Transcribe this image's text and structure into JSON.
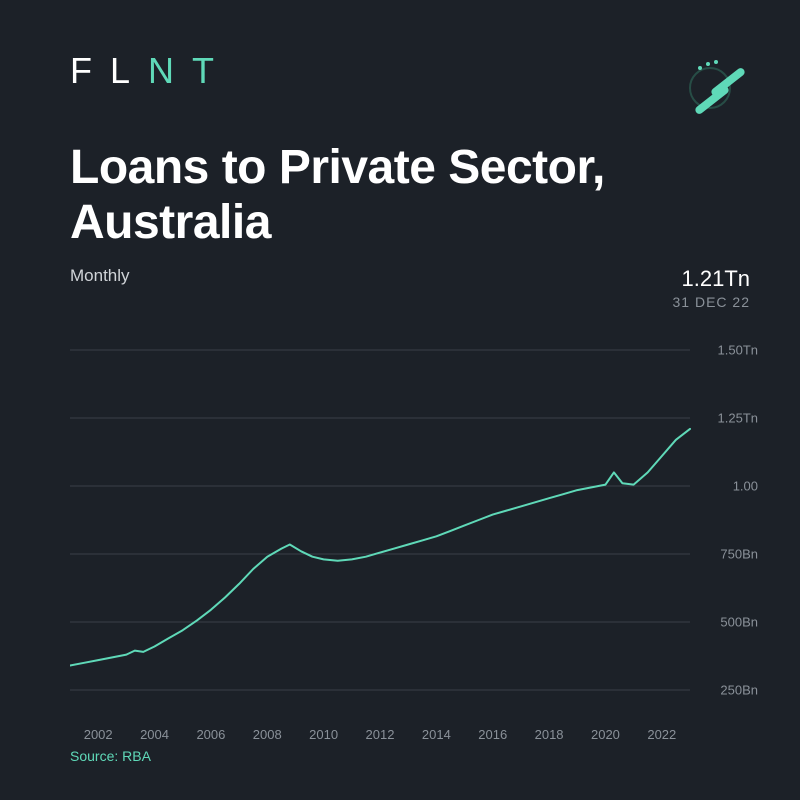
{
  "brand": {
    "letters": [
      "F",
      "L",
      "N",
      "T"
    ],
    "accent_start_index": 2,
    "text_color": "#ffffff",
    "accent_color": "#5fd9b8"
  },
  "title": "Loans to Private Sector, Australia",
  "subtitle": "Monthly",
  "latest": {
    "value": "1.21Tn",
    "date": "31 DEC  22"
  },
  "source": "Source: RBA",
  "chart": {
    "type": "line",
    "background_color": "#1c2128",
    "line_color": "#5fd9b8",
    "line_width": 2,
    "grid_color": "#3a4049",
    "axis_label_color": "#8a9199",
    "label_fontsize": 13,
    "x": {
      "min": 2001,
      "max": 2023,
      "ticks": [
        2002,
        2004,
        2006,
        2008,
        2010,
        2012,
        2014,
        2016,
        2018,
        2020,
        2022
      ]
    },
    "y": {
      "min": 250,
      "max": 1500,
      "unit": "Bn",
      "ticks": [
        {
          "value": 250,
          "label": "250Bn"
        },
        {
          "value": 500,
          "label": "500Bn"
        },
        {
          "value": 750,
          "label": "750Bn"
        },
        {
          "value": 1000,
          "label": "1.00"
        },
        {
          "value": 1250,
          "label": "1.25Tn"
        },
        {
          "value": 1500,
          "label": "1.50Tn"
        }
      ]
    },
    "series": [
      {
        "x": 2001.0,
        "y": 340
      },
      {
        "x": 2001.5,
        "y": 350
      },
      {
        "x": 2002.0,
        "y": 360
      },
      {
        "x": 2002.5,
        "y": 370
      },
      {
        "x": 2003.0,
        "y": 380
      },
      {
        "x": 2003.3,
        "y": 395
      },
      {
        "x": 2003.6,
        "y": 390
      },
      {
        "x": 2004.0,
        "y": 410
      },
      {
        "x": 2004.5,
        "y": 440
      },
      {
        "x": 2005.0,
        "y": 470
      },
      {
        "x": 2005.5,
        "y": 505
      },
      {
        "x": 2006.0,
        "y": 545
      },
      {
        "x": 2006.5,
        "y": 590
      },
      {
        "x": 2007.0,
        "y": 640
      },
      {
        "x": 2007.5,
        "y": 695
      },
      {
        "x": 2008.0,
        "y": 740
      },
      {
        "x": 2008.5,
        "y": 770
      },
      {
        "x": 2008.8,
        "y": 785
      },
      {
        "x": 2009.2,
        "y": 760
      },
      {
        "x": 2009.6,
        "y": 740
      },
      {
        "x": 2010.0,
        "y": 730
      },
      {
        "x": 2010.5,
        "y": 725
      },
      {
        "x": 2011.0,
        "y": 730
      },
      {
        "x": 2011.5,
        "y": 740
      },
      {
        "x": 2012.0,
        "y": 755
      },
      {
        "x": 2012.5,
        "y": 770
      },
      {
        "x": 2013.0,
        "y": 785
      },
      {
        "x": 2013.5,
        "y": 800
      },
      {
        "x": 2014.0,
        "y": 815
      },
      {
        "x": 2014.5,
        "y": 835
      },
      {
        "x": 2015.0,
        "y": 855
      },
      {
        "x": 2015.5,
        "y": 875
      },
      {
        "x": 2016.0,
        "y": 895
      },
      {
        "x": 2016.5,
        "y": 910
      },
      {
        "x": 2017.0,
        "y": 925
      },
      {
        "x": 2017.5,
        "y": 940
      },
      {
        "x": 2018.0,
        "y": 955
      },
      {
        "x": 2018.5,
        "y": 970
      },
      {
        "x": 2019.0,
        "y": 985
      },
      {
        "x": 2019.5,
        "y": 995
      },
      {
        "x": 2020.0,
        "y": 1005
      },
      {
        "x": 2020.3,
        "y": 1050
      },
      {
        "x": 2020.6,
        "y": 1010
      },
      {
        "x": 2021.0,
        "y": 1005
      },
      {
        "x": 2021.5,
        "y": 1050
      },
      {
        "x": 2022.0,
        "y": 1110
      },
      {
        "x": 2022.5,
        "y": 1170
      },
      {
        "x": 2023.0,
        "y": 1210
      }
    ]
  }
}
